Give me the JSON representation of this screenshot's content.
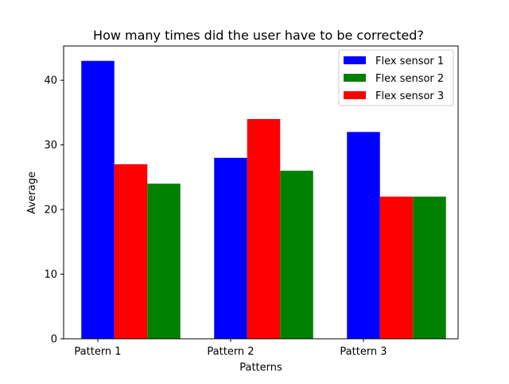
{
  "chart_data": {
    "type": "bar",
    "title": "How many times did the user have to be corrected?",
    "xlabel": "Patterns",
    "ylabel": "Average",
    "categories": [
      "Pattern 1",
      "Pattern 2",
      "Pattern 3"
    ],
    "ylim": [
      0,
      45.3
    ],
    "yticks": [
      0,
      10,
      20,
      30,
      40
    ],
    "grid": false,
    "legend_position": "top-right",
    "series": [
      {
        "name": "Flex sensor 1",
        "color": "#0000ff",
        "values": [
          43,
          28,
          32
        ]
      },
      {
        "name": "Flex sensor 2",
        "color": "#008000",
        "values": [
          24,
          26,
          22
        ]
      },
      {
        "name": "Flex sensor 3",
        "color": "#ff0000",
        "values": [
          27,
          34,
          22
        ]
      }
    ]
  }
}
